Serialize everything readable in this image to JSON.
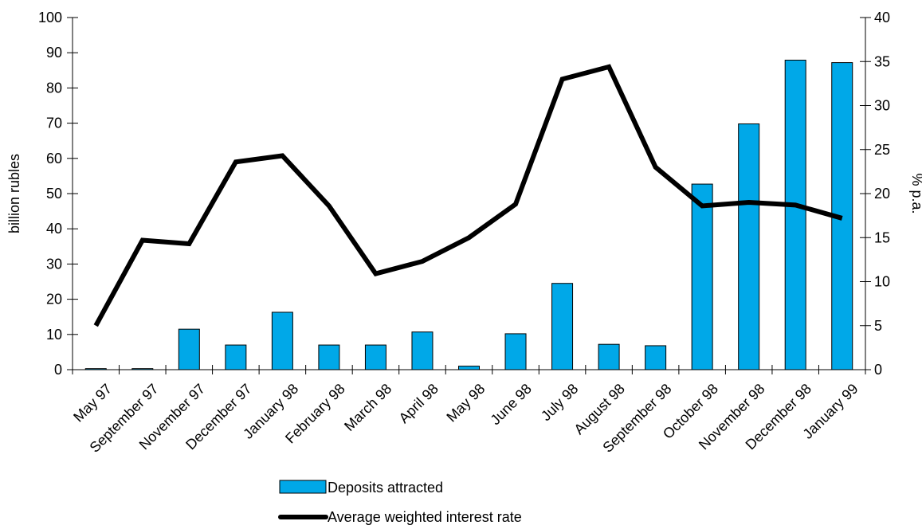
{
  "chart_data": {
    "type": "bar",
    "categories": [
      "May 97",
      "September 97",
      "November 97",
      "December 97",
      "January 98",
      "February 98",
      "March 98",
      "April 98",
      "May 98",
      "June 98",
      "July 98",
      "August 98",
      "September 98",
      "October 98",
      "November 98",
      "December 98",
      "January 99"
    ],
    "series": [
      {
        "name": "Deposits attracted",
        "type": "bar",
        "axis": "left",
        "color": "#00a8e8",
        "values": [
          0.3,
          0.3,
          11.5,
          7,
          16.3,
          7,
          7,
          10.7,
          1,
          10.2,
          24.5,
          7.2,
          6.8,
          52.7,
          69.8,
          87.9,
          87.2
        ]
      },
      {
        "name": "Average weighted interest rate",
        "type": "line",
        "axis": "right",
        "color": "#000000",
        "values": [
          5,
          14.7,
          14.3,
          23.6,
          24.3,
          18.6,
          10.9,
          12.3,
          15,
          18.8,
          33,
          34.4,
          23,
          18.6,
          19,
          18.7,
          17.2
        ]
      }
    ],
    "y_left": {
      "label": "billion rubles",
      "range": [
        0,
        100
      ],
      "ticks": [
        0,
        10,
        20,
        30,
        40,
        50,
        60,
        70,
        80,
        90,
        100
      ]
    },
    "y_right": {
      "label": "% p.a.",
      "range": [
        0,
        40
      ],
      "ticks": [
        0,
        5,
        10,
        15,
        20,
        25,
        30,
        35,
        40
      ]
    },
    "legend_position": "bottom-center",
    "grid": false,
    "title": "",
    "xlabel": ""
  }
}
